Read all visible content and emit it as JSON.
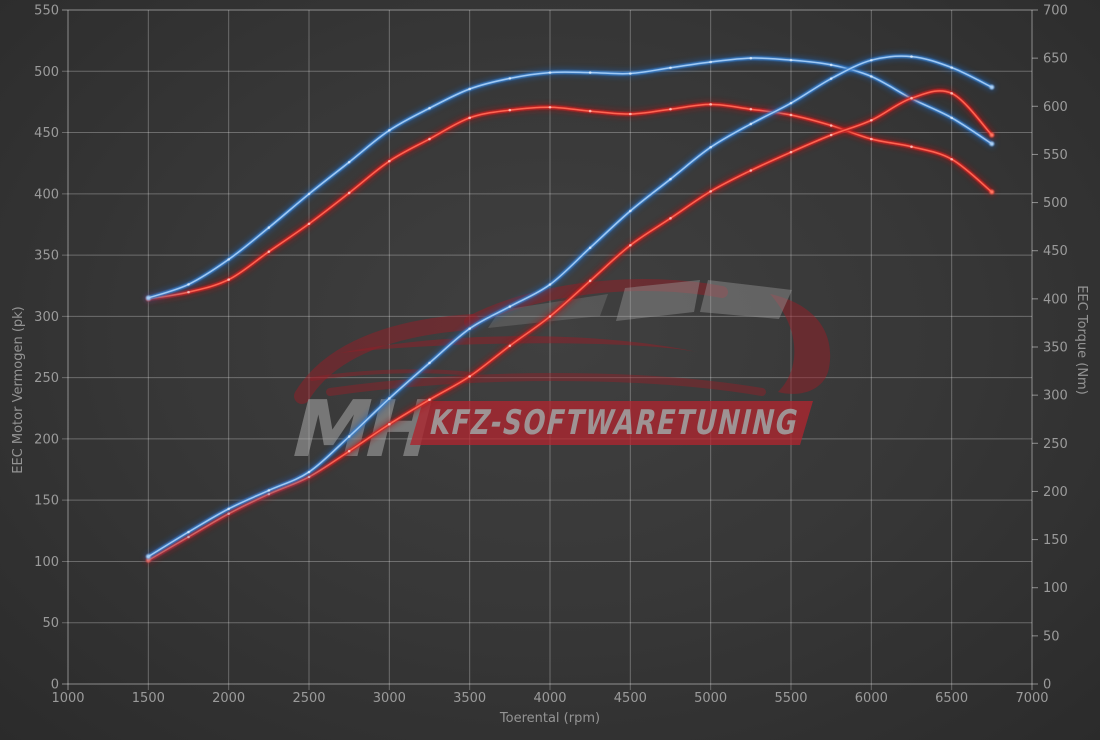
{
  "watermark": {
    "brand_short": "MH",
    "brand_text": "KFZ-SOFTWARETUNING",
    "band_color": "#b5242e",
    "text_color": "#a8a8a8"
  },
  "colors": {
    "background": "#373737",
    "grid": "rgba(255,255,255,0.28)",
    "grid_border": "rgba(255,255,255,0.45)",
    "tick_text": "#9b9b9b",
    "blue_core": "#a5cdf5",
    "blue_mid": "#3b82d0",
    "blue_glow": "#1c5dab",
    "red_core": "#ff6a55",
    "red_mid": "#d32020",
    "red_glow": "#9e1412",
    "marker": "#ffffff"
  },
  "axes": {
    "x": {
      "label": "Toerental (rpm)",
      "min": 1000,
      "max": 7000,
      "step": 500,
      "ticks": [
        1000,
        1500,
        2000,
        2500,
        3000,
        3500,
        4000,
        4500,
        5000,
        5500,
        6000,
        6500,
        7000
      ]
    },
    "y_left": {
      "label": "EEC Motor Vermogen (pk)",
      "min": 0,
      "max": 550,
      "step": 50,
      "ticks": [
        0,
        50,
        100,
        150,
        200,
        250,
        300,
        350,
        400,
        450,
        500,
        550
      ]
    },
    "y_right": {
      "label": "EEC Torque (Nm)",
      "min": 0,
      "max": 700,
      "step": 50,
      "ticks": [
        0,
        50,
        100,
        150,
        200,
        250,
        300,
        350,
        400,
        450,
        500,
        550,
        600,
        650,
        700
      ]
    }
  },
  "chart_data": {
    "type": "line",
    "title": "",
    "xlabel": "Toerental (rpm)",
    "ylabel_left": "EEC Motor Vermogen (pk)",
    "ylabel_right": "EEC Torque (Nm)",
    "xlim": [
      1000,
      7000
    ],
    "ylim_left": [
      0,
      550
    ],
    "ylim_right": [
      0,
      700
    ],
    "grid": true,
    "legend": "none",
    "x": [
      1500,
      1750,
      2000,
      2250,
      2500,
      2750,
      3000,
      3250,
      3500,
      3750,
      4000,
      4250,
      4500,
      4750,
      5000,
      5250,
      5500,
      5750,
      6000,
      6250,
      6500,
      6750
    ],
    "series": [
      {
        "name": "torque-red",
        "color_key": "red",
        "axis": "right",
        "unit": "Nm",
        "values": [
          400,
          407,
          420,
          449,
          478,
          510,
          543,
          566,
          588,
          596,
          599,
          595,
          592,
          597,
          602,
          597,
          591,
          580,
          566,
          558,
          545,
          511
        ]
      },
      {
        "name": "torque-blue",
        "color_key": "blue",
        "axis": "right",
        "unit": "Nm",
        "values": [
          401,
          415,
          441,
          474,
          509,
          542,
          575,
          598,
          618,
          629,
          635,
          635,
          634,
          640,
          646,
          650,
          648,
          643,
          631,
          608,
          588,
          561
        ]
      },
      {
        "name": "power-red",
        "color_key": "red",
        "axis": "left",
        "unit": "pk",
        "values": [
          101,
          120,
          139,
          155,
          169,
          190,
          212,
          232,
          251,
          276,
          300,
          329,
          358,
          380,
          402,
          419,
          434,
          448,
          460,
          478,
          482,
          448
        ]
      },
      {
        "name": "power-blue",
        "color_key": "blue",
        "axis": "left",
        "unit": "pk",
        "values": [
          104,
          124,
          143,
          158,
          173,
          202,
          233,
          262,
          290,
          308,
          326,
          356,
          386,
          412,
          438,
          457,
          474,
          494,
          509,
          512,
          503,
          487
        ]
      }
    ]
  }
}
